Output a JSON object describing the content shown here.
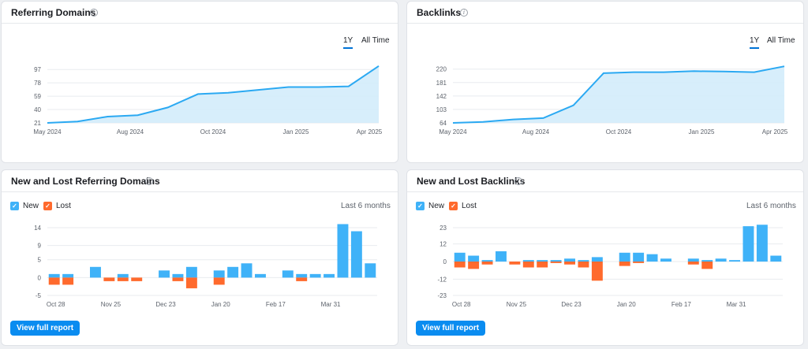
{
  "colors": {
    "line": "#2ba9f2",
    "area": "#d3ecfb",
    "new": "#3fb2f8",
    "lost": "#ff6a2d",
    "button": "#0a8cf0"
  },
  "ranges": {
    "one_year": "1Y",
    "all_time": "All Time"
  },
  "legend": {
    "new": "New",
    "lost": "Lost",
    "period": "Last 6 months"
  },
  "button_label": "View full report",
  "panels": {
    "ref_domains": {
      "title": "Referring Domains",
      "info_icon": "info-icon"
    },
    "backlinks": {
      "title": "Backlinks",
      "info_icon": "info-icon"
    },
    "nl_ref": {
      "title": "New and Lost Referring Domains",
      "info_icon": "info-icon"
    },
    "nl_back": {
      "title": "New and Lost Backlinks",
      "info_icon": "info-icon"
    }
  },
  "chart_data": [
    {
      "id": "ref_domains",
      "type": "area",
      "ylim": [
        21,
        104
      ],
      "y_ticks": [
        "97",
        "78",
        "59",
        "40",
        "21"
      ],
      "y_tick_values": [
        97,
        78,
        59,
        40,
        21
      ],
      "x_tick_labels": [
        "May 2024",
        "Aug 2024",
        "Oct 2024",
        "Jan 2025",
        "Apr 2025"
      ],
      "x_tick_index": [
        0,
        3,
        6,
        9,
        12
      ],
      "values": [
        21,
        23,
        30,
        32,
        43,
        62,
        64,
        68,
        72,
        72,
        73,
        102
      ]
    },
    {
      "id": "backlinks",
      "type": "area",
      "ylim": [
        64,
        233
      ],
      "y_ticks": [
        "220",
        "181",
        "142",
        "103",
        "64"
      ],
      "y_tick_values": [
        220,
        181,
        142,
        103,
        64
      ],
      "x_tick_labels": [
        "May 2024",
        "Aug 2024",
        "Oct 2024",
        "Jan 2025",
        "Apr 2025"
      ],
      "x_tick_index": [
        0,
        3,
        6,
        9,
        12
      ],
      "values": [
        64,
        67,
        74,
        78,
        115,
        208,
        211,
        211,
        214,
        213,
        211,
        228
      ]
    },
    {
      "id": "nl_ref",
      "type": "bar",
      "ylim": [
        -5,
        14
      ],
      "y_ticks": [
        "14",
        "9",
        "5",
        "0",
        "-5"
      ],
      "y_tick_values": [
        14,
        9,
        5,
        0,
        -5
      ],
      "x_tick_labels": [
        "Oct 28",
        "Nov 25",
        "Dec 23",
        "Jan 20",
        "Feb 17",
        "Mar 31"
      ],
      "x_tick_index": [
        0,
        4,
        8,
        12,
        16,
        20
      ],
      "series": [
        {
          "name": "New",
          "values": [
            1,
            1,
            0,
            3,
            0,
            1,
            0,
            0,
            2,
            1,
            3,
            0,
            2,
            3,
            4,
            1,
            0,
            2,
            1,
            1,
            1,
            15,
            13,
            4
          ]
        },
        {
          "name": "Lost",
          "values": [
            -2,
            -2,
            0,
            0,
            -1,
            -1,
            -1,
            0,
            0,
            -1,
            -3,
            0,
            -2,
            0,
            0,
            0,
            0,
            0,
            -1,
            0,
            0,
            0,
            0,
            0
          ]
        }
      ]
    },
    {
      "id": "nl_back",
      "type": "bar",
      "ylim": [
        -23,
        23
      ],
      "y_ticks": [
        "23",
        "12",
        "0",
        "-12",
        "-23"
      ],
      "y_tick_values": [
        23,
        12,
        0,
        -12,
        -23
      ],
      "x_tick_labels": [
        "Oct 28",
        "Nov 25",
        "Dec 23",
        "Jan 20",
        "Feb 17",
        "Mar 31"
      ],
      "x_tick_index": [
        0,
        4,
        8,
        12,
        16,
        20
      ],
      "series": [
        {
          "name": "New",
          "values": [
            6,
            4,
            1,
            7,
            0,
            1,
            1,
            1,
            2,
            1,
            3,
            0,
            6,
            6,
            5,
            2,
            0,
            2,
            1,
            2,
            1,
            24,
            25,
            4
          ]
        },
        {
          "name": "Lost",
          "values": [
            -4,
            -5,
            -2,
            0,
            -2,
            -4,
            -4,
            -1,
            -2,
            -4,
            -13,
            0,
            -3,
            -1,
            0,
            0,
            0,
            -2,
            -5,
            0,
            0,
            0,
            0,
            0
          ]
        }
      ]
    }
  ]
}
